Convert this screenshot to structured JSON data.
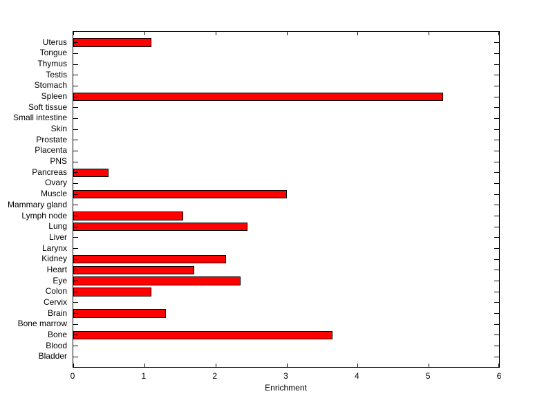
{
  "chart_data": {
    "type": "bar",
    "orientation": "horizontal",
    "title": "",
    "xlabel": "Enrichment",
    "ylabel": "",
    "xlim": [
      0,
      6
    ],
    "xticks": [
      0,
      1,
      2,
      3,
      4,
      5,
      6
    ],
    "grid": false,
    "legend": "none",
    "bar_color": "#FF0000",
    "bar_edge_color": "#000000",
    "axis_color": "#000000",
    "background_color": "#FFFFFF",
    "categories": [
      "Uterus",
      "Tongue",
      "Thymus",
      "Testis",
      "Stomach",
      "Spleen",
      "Soft tissue",
      "Small intestine",
      "Skin",
      "Prostate",
      "Placenta",
      "PNS",
      "Pancreas",
      "Ovary",
      "Muscle",
      "Mammary gland",
      "Lymph node",
      "Lung",
      "Liver",
      "Larynx",
      "Kidney",
      "Heart",
      "Eye",
      "Colon",
      "Cervix",
      "Brain",
      "Bone marrow",
      "Bone",
      "Blood",
      "Bladder"
    ],
    "values": [
      1.1,
      0,
      0,
      0,
      0,
      5.2,
      0,
      0,
      0,
      0,
      0,
      0,
      0.5,
      0,
      3.0,
      0,
      1.55,
      2.45,
      0,
      0,
      2.15,
      1.7,
      2.35,
      1.1,
      0,
      1.3,
      0,
      3.65,
      0,
      0
    ]
  }
}
